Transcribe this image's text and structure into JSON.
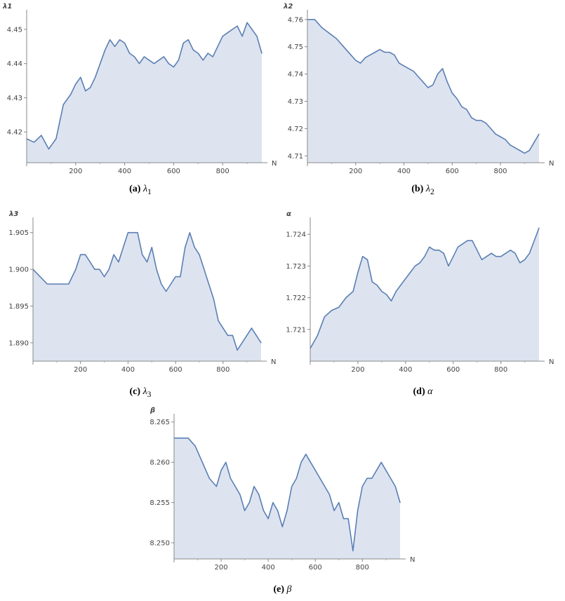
{
  "chart_data": [
    {
      "id": "a",
      "type": "area",
      "caption_letter": "(a)",
      "caption_symbol": "λ",
      "caption_sub": "1",
      "ylabel": "λ1",
      "xlabel": "N",
      "xlim": [
        0,
        960
      ],
      "ylim": [
        4.411,
        4.4545
      ],
      "xticks": [
        200,
        400,
        600,
        800
      ],
      "yticks": [
        4.42,
        4.43,
        4.44,
        4.45
      ],
      "ytick_labels": [
        "4.42",
        "4.43",
        "4.44",
        "4.45"
      ],
      "color": "#5b7fb4",
      "fill": "#dde4f0",
      "x": [
        0,
        30,
        60,
        90,
        120,
        150,
        180,
        200,
        220,
        240,
        260,
        280,
        300,
        320,
        340,
        360,
        380,
        400,
        420,
        440,
        460,
        480,
        500,
        520,
        540,
        560,
        580,
        600,
        620,
        640,
        660,
        680,
        700,
        720,
        740,
        760,
        780,
        800,
        820,
        840,
        860,
        880,
        900,
        920,
        940,
        960
      ],
      "y": [
        4.418,
        4.417,
        4.419,
        4.415,
        4.418,
        4.428,
        4.431,
        4.434,
        4.436,
        4.432,
        4.433,
        4.436,
        4.44,
        4.444,
        4.447,
        4.445,
        4.447,
        4.446,
        4.443,
        4.442,
        4.44,
        4.442,
        4.441,
        4.44,
        4.441,
        4.442,
        4.44,
        4.439,
        4.441,
        4.446,
        4.447,
        4.444,
        4.443,
        4.441,
        4.443,
        4.442,
        4.445,
        4.448,
        4.449,
        4.45,
        4.451,
        4.448,
        4.452,
        4.45,
        4.448,
        4.443
      ]
    },
    {
      "id": "b",
      "type": "area",
      "caption_letter": "(b)",
      "caption_symbol": "λ",
      "caption_sub": "2",
      "ylabel": "λ2",
      "xlabel": "N",
      "xlim": [
        0,
        960
      ],
      "ylim": [
        4.7075,
        4.762
      ],
      "xticks": [
        200,
        400,
        600,
        800
      ],
      "yticks": [
        4.71,
        4.72,
        4.73,
        4.74,
        4.75,
        4.76
      ],
      "ytick_labels": [
        "4.71",
        "4.72",
        "4.73",
        "4.74",
        "4.75",
        "4.76"
      ],
      "color": "#5b7fb4",
      "fill": "#dde4f0",
      "x": [
        0,
        30,
        60,
        90,
        120,
        150,
        180,
        200,
        220,
        240,
        260,
        280,
        300,
        320,
        340,
        360,
        380,
        400,
        420,
        440,
        460,
        480,
        500,
        520,
        540,
        560,
        580,
        600,
        620,
        640,
        660,
        680,
        700,
        720,
        740,
        760,
        780,
        800,
        820,
        840,
        860,
        880,
        900,
        920,
        940,
        960
      ],
      "y": [
        4.76,
        4.76,
        4.757,
        4.755,
        4.753,
        4.75,
        4.747,
        4.745,
        4.744,
        4.746,
        4.747,
        4.748,
        4.749,
        4.748,
        4.748,
        4.747,
        4.744,
        4.743,
        4.742,
        4.741,
        4.739,
        4.737,
        4.735,
        4.736,
        4.74,
        4.742,
        4.737,
        4.733,
        4.731,
        4.728,
        4.727,
        4.724,
        4.723,
        4.723,
        4.722,
        4.72,
        4.718,
        4.717,
        4.716,
        4.714,
        4.713,
        4.712,
        4.711,
        4.712,
        4.715,
        4.718
      ]
    },
    {
      "id": "c",
      "type": "area",
      "caption_letter": "(c)",
      "caption_symbol": "λ",
      "caption_sub": "3",
      "ylabel": "λ3",
      "xlabel": "N",
      "xlim": [
        0,
        960
      ],
      "ylim": [
        1.8875,
        1.9065
      ],
      "xticks": [
        200,
        400,
        600,
        800
      ],
      "yticks": [
        1.89,
        1.895,
        1.9,
        1.905
      ],
      "ytick_labels": [
        "1.890",
        "1.895",
        "1.900",
        "1.905"
      ],
      "color": "#5b7fb4",
      "fill": "#dde4f0",
      "x": [
        0,
        30,
        60,
        90,
        120,
        150,
        180,
        200,
        220,
        240,
        260,
        280,
        300,
        320,
        340,
        360,
        380,
        400,
        420,
        440,
        460,
        480,
        500,
        520,
        540,
        560,
        580,
        600,
        620,
        640,
        660,
        680,
        700,
        720,
        740,
        760,
        780,
        800,
        820,
        840,
        860,
        880,
        900,
        920,
        940,
        960
      ],
      "y": [
        1.9,
        1.899,
        1.898,
        1.898,
        1.898,
        1.898,
        1.9,
        1.902,
        1.902,
        1.901,
        1.9,
        1.9,
        1.899,
        1.9,
        1.902,
        1.901,
        1.903,
        1.905,
        1.905,
        1.905,
        1.902,
        1.901,
        1.903,
        1.9,
        1.898,
        1.897,
        1.898,
        1.899,
        1.899,
        1.903,
        1.905,
        1.903,
        1.902,
        1.9,
        1.898,
        1.896,
        1.893,
        1.892,
        1.891,
        1.891,
        1.889,
        1.89,
        1.891,
        1.892,
        1.891,
        1.89
      ]
    },
    {
      "id": "d",
      "type": "area",
      "caption_letter": "(d)",
      "caption_symbol": "α",
      "caption_sub": "",
      "ylabel": "α",
      "xlabel": "N",
      "xlim": [
        0,
        960
      ],
      "ylim": [
        1.72,
        1.7244
      ],
      "xticks": [
        200,
        400,
        600,
        800
      ],
      "yticks": [
        1.721,
        1.722,
        1.723,
        1.724
      ],
      "ytick_labels": [
        "1.721",
        "1.722",
        "1.723",
        "1.724"
      ],
      "color": "#5b7fb4",
      "fill": "#dde4f0",
      "x": [
        0,
        30,
        60,
        90,
        120,
        150,
        180,
        200,
        220,
        240,
        260,
        280,
        300,
        320,
        340,
        360,
        380,
        400,
        420,
        440,
        460,
        480,
        500,
        520,
        540,
        560,
        580,
        600,
        620,
        640,
        660,
        680,
        700,
        720,
        740,
        760,
        780,
        800,
        820,
        840,
        860,
        880,
        900,
        920,
        940,
        960
      ],
      "y": [
        1.7204,
        1.7208,
        1.7214,
        1.7216,
        1.7217,
        1.722,
        1.7222,
        1.7228,
        1.7233,
        1.7232,
        1.7225,
        1.7224,
        1.7222,
        1.7221,
        1.7219,
        1.7222,
        1.7224,
        1.7226,
        1.7228,
        1.723,
        1.7231,
        1.7233,
        1.7236,
        1.7235,
        1.7235,
        1.7234,
        1.723,
        1.7233,
        1.7236,
        1.7237,
        1.7238,
        1.7238,
        1.7235,
        1.7232,
        1.7233,
        1.7234,
        1.7233,
        1.7233,
        1.7234,
        1.7235,
        1.7234,
        1.7231,
        1.7232,
        1.7234,
        1.7238,
        1.7242
      ]
    },
    {
      "id": "e",
      "type": "area",
      "caption_letter": "(e)",
      "caption_symbol": "β",
      "caption_sub": "",
      "ylabel": "β",
      "xlabel": "N",
      "xlim": [
        0,
        960
      ],
      "ylim": [
        8.248,
        8.2655
      ],
      "xticks": [
        200,
        400,
        600,
        800
      ],
      "yticks": [
        8.25,
        8.255,
        8.26,
        8.265
      ],
      "ytick_labels": [
        "8.250",
        "8.255",
        "8.260",
        "8.265"
      ],
      "color": "#5b7fb4",
      "fill": "#dde4f0",
      "x": [
        0,
        30,
        60,
        90,
        120,
        150,
        180,
        200,
        220,
        240,
        260,
        280,
        300,
        320,
        340,
        360,
        380,
        400,
        420,
        440,
        460,
        480,
        500,
        520,
        540,
        560,
        580,
        600,
        620,
        640,
        660,
        680,
        700,
        720,
        740,
        760,
        780,
        800,
        820,
        840,
        860,
        880,
        900,
        920,
        940,
        960
      ],
      "y": [
        8.263,
        8.263,
        8.263,
        8.262,
        8.26,
        8.258,
        8.257,
        8.259,
        8.26,
        8.258,
        8.257,
        8.256,
        8.254,
        8.255,
        8.257,
        8.256,
        8.254,
        8.253,
        8.255,
        8.254,
        8.252,
        8.254,
        8.257,
        8.258,
        8.26,
        8.261,
        8.26,
        8.259,
        8.258,
        8.257,
        8.256,
        8.254,
        8.255,
        8.253,
        8.253,
        8.249,
        8.254,
        8.257,
        8.258,
        8.258,
        8.259,
        8.26,
        8.259,
        8.258,
        8.257,
        8.255
      ]
    }
  ]
}
